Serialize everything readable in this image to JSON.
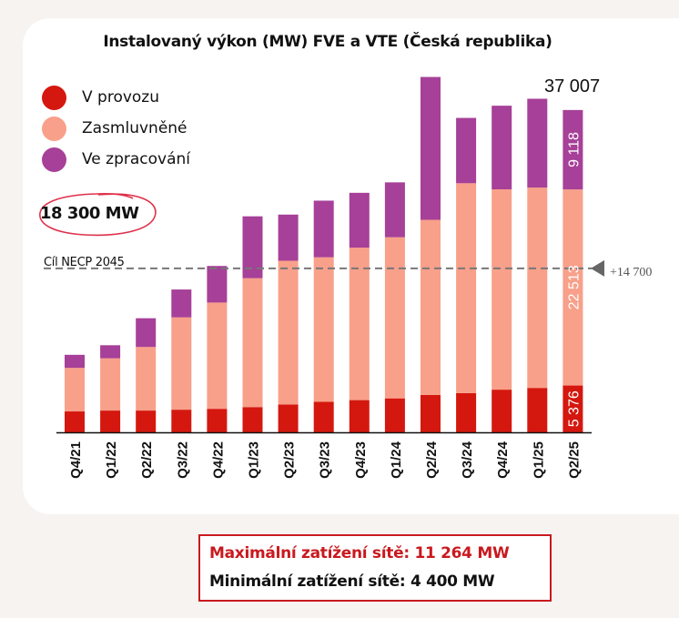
{
  "colors": {
    "v_provozu": "#d4180f",
    "zasmluvnene": "#f8a08a",
    "ve_zpracovani": "#a64098",
    "target_ellipse": "#e0304a",
    "necp_line": "#777777",
    "info_max": "#c9191e"
  },
  "chart_data": {
    "type": "bar",
    "stacked": true,
    "title": "Instalovaný výkon (MW) FVE a VTE (Česká republika)",
    "xlabel": "",
    "ylabel": "",
    "ylim": [
      0,
      40000
    ],
    "grid": false,
    "legend_position": "top-left",
    "categories": [
      "Q4/21",
      "Q1/22",
      "Q2/22",
      "Q3/22",
      "Q4/22",
      "Q1/23",
      "Q2/23",
      "Q3/23",
      "Q4/23",
      "Q1/24",
      "Q2/24",
      "Q3/24",
      "Q4/24",
      "Q1/25",
      "Q2/25"
    ],
    "series": [
      {
        "name": "V provozu",
        "color_key": "v_provozu",
        "values": [
          2400,
          2500,
          2500,
          2600,
          2700,
          2900,
          3200,
          3500,
          3700,
          3900,
          4300,
          4500,
          4900,
          5100,
          5376
        ]
      },
      {
        "name": "Zasmluvněné",
        "color_key": "zasmluvnene",
        "values": [
          5000,
          6000,
          7300,
          10600,
          12200,
          14800,
          16500,
          16600,
          17500,
          18500,
          20100,
          24100,
          23000,
          23000,
          22513
        ]
      },
      {
        "name": "Ve zpracování",
        "color_key": "ve_zpracovani",
        "values": [
          1500,
          1500,
          3300,
          3200,
          4200,
          7100,
          5300,
          6500,
          6300,
          6300,
          16400,
          7500,
          9600,
          10200,
          9118
        ]
      }
    ],
    "data_labels": [
      {
        "category": "Q2/25",
        "series": "V provozu",
        "text": "5 376"
      },
      {
        "category": "Q2/25",
        "series": "Zasmluvněné",
        "text": "22 513"
      },
      {
        "category": "Q2/25",
        "series": "Ve zpracování",
        "text": "9 118"
      }
    ],
    "total_annotation": {
      "category": "Q2/25",
      "text": "37 007"
    },
    "reference_line": {
      "value": 18300,
      "label": "Cíl NECP 2045",
      "badge": "18 300 MW",
      "delta_text": "+14 700"
    }
  },
  "legend": [
    {
      "label": "V provozu",
      "color_key": "v_provozu"
    },
    {
      "label": "Zasmluvněné",
      "color_key": "zasmluvnene"
    },
    {
      "label": "Ve zpracování",
      "color_key": "ve_zpracovani"
    }
  ],
  "info_box": {
    "max_text": "Maximální zatížení sítě: 11 264 MW",
    "min_text": "Minimální zatížení sítě:  4 400 MW"
  }
}
